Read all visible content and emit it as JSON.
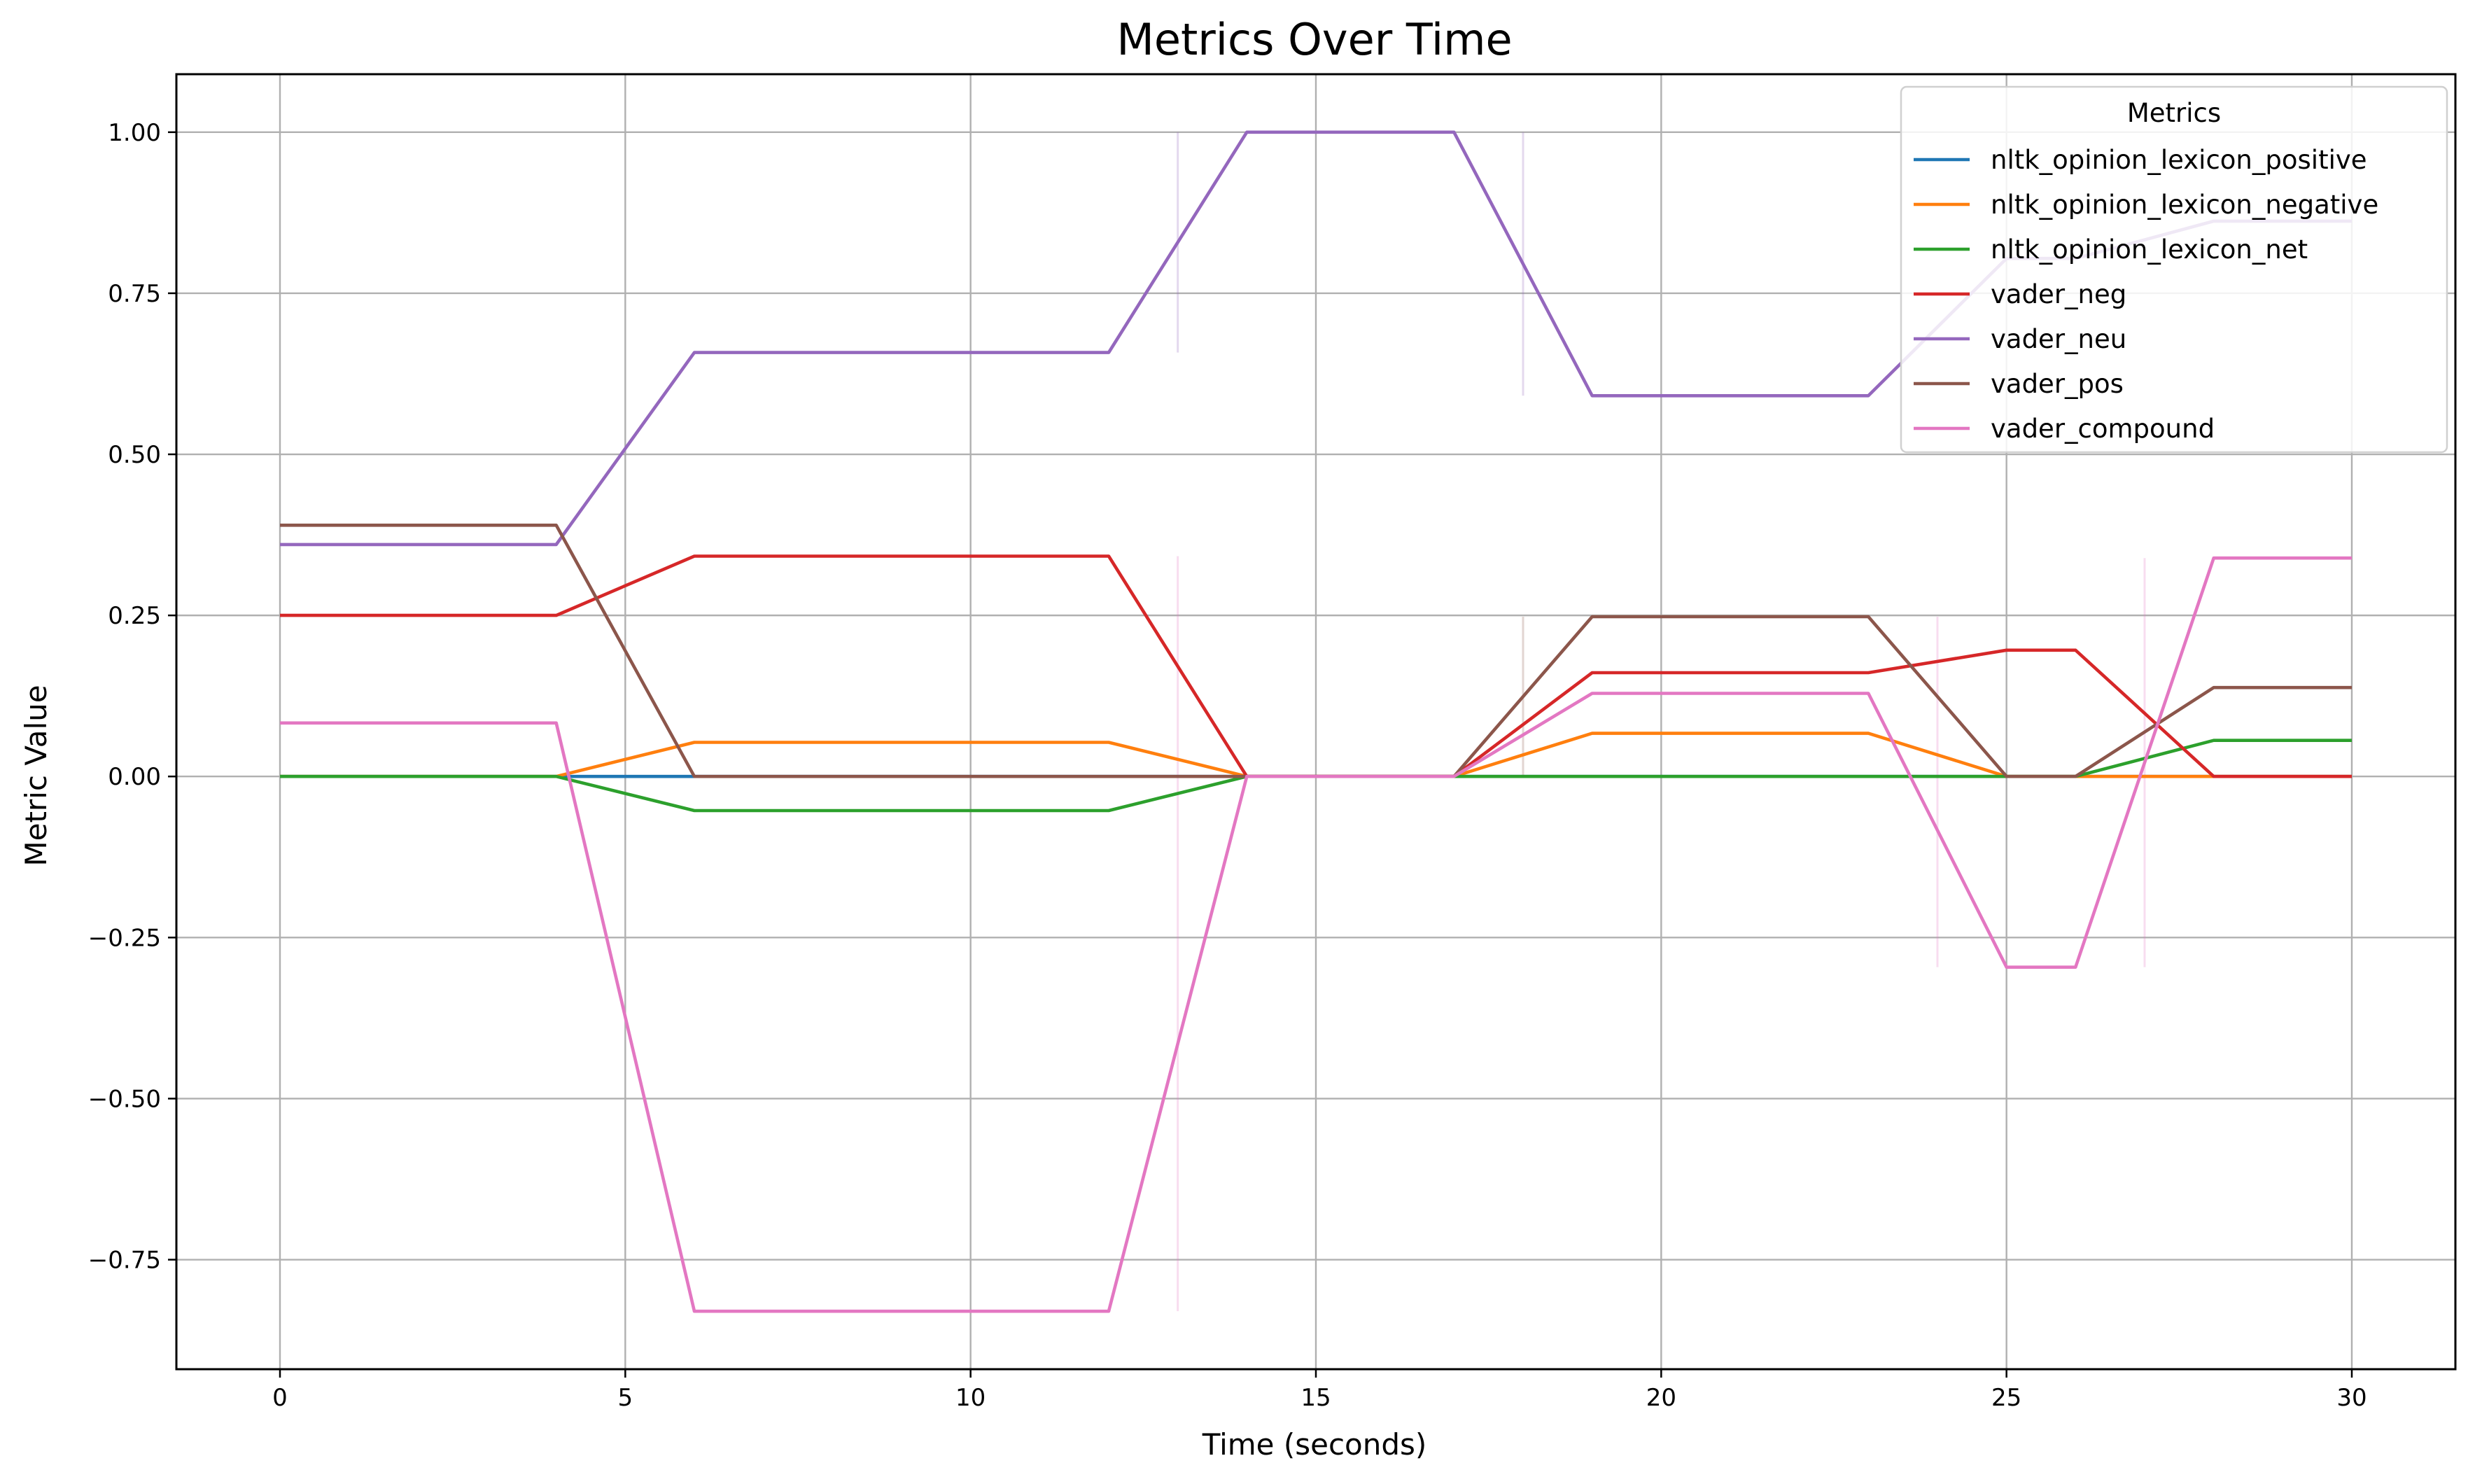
{
  "chart_data": {
    "type": "line",
    "title": "Metrics Over Time",
    "xlabel": "Time (seconds)",
    "ylabel": "Metric Value",
    "xlim": [
      -1.5,
      31.5
    ],
    "ylim": [
      -0.92,
      1.09
    ],
    "x_ticks": [
      0,
      5,
      10,
      15,
      20,
      25,
      30
    ],
    "x_tick_labels": [
      "0",
      "5",
      "10",
      "15",
      "20",
      "25",
      "30"
    ],
    "y_ticks": [
      1.0,
      0.75,
      0.5,
      0.25,
      0.0,
      -0.25,
      -0.5,
      -0.75
    ],
    "y_tick_labels": [
      "1.00",
      "0.75",
      "0.50",
      "0.25",
      "0.00",
      "−0.25",
      "−0.50",
      "−0.75"
    ],
    "grid": true,
    "legend": {
      "title": "Metrics",
      "placement": "top-right"
    },
    "series": [
      {
        "name": "nltk_opinion_lexicon_positive",
        "color": "#1f77b4",
        "x": [
          0,
          4,
          6,
          12,
          14,
          17,
          19,
          23,
          25,
          26,
          28,
          30
        ],
        "values": [
          0,
          0,
          0,
          0,
          0,
          0,
          0,
          0,
          0,
          0,
          0,
          0
        ]
      },
      {
        "name": "nltk_opinion_lexicon_negative",
        "color": "#ff7f0e",
        "x": [
          0,
          4,
          6,
          12,
          14,
          17,
          19,
          23,
          25,
          26,
          28,
          30
        ],
        "values": [
          0,
          0,
          0.053,
          0.053,
          0,
          0,
          0.067,
          0.067,
          0,
          0,
          0,
          0
        ]
      },
      {
        "name": "nltk_opinion_lexicon_net",
        "color": "#2ca02c",
        "x": [
          0,
          4,
          6,
          12,
          14,
          17,
          19,
          23,
          25,
          26,
          28,
          30
        ],
        "values": [
          0,
          0,
          -0.053,
          -0.053,
          0,
          0,
          0,
          0,
          0,
          0,
          0.056,
          0.056
        ]
      },
      {
        "name": "vader_neg",
        "color": "#d62728",
        "x": [
          0,
          4,
          6,
          12,
          14,
          17,
          19,
          23,
          25,
          26,
          28,
          30
        ],
        "values": [
          0.25,
          0.25,
          0.342,
          0.342,
          0,
          0,
          0.161,
          0.161,
          0.196,
          0.196,
          0,
          0
        ]
      },
      {
        "name": "vader_neu",
        "color": "#9467bd",
        "x": [
          0,
          4,
          6,
          12,
          14,
          17,
          19,
          23,
          25,
          26,
          28,
          30
        ],
        "values": [
          0.36,
          0.36,
          0.658,
          0.658,
          1.0,
          1.0,
          0.591,
          0.591,
          0.804,
          0.804,
          0.862,
          0.862
        ]
      },
      {
        "name": "vader_pos",
        "color": "#8c564b",
        "x": [
          0,
          4,
          6,
          12,
          14,
          17,
          19,
          23,
          25,
          26,
          28,
          30
        ],
        "values": [
          0.39,
          0.39,
          0,
          0,
          0,
          0,
          0.248,
          0.248,
          0,
          0,
          0.138,
          0.138
        ]
      },
      {
        "name": "vader_compound",
        "color": "#e377c2",
        "x": [
          0,
          4,
          6,
          12,
          14,
          17,
          19,
          23,
          25,
          26,
          28,
          30
        ],
        "values": [
          0.083,
          0.083,
          -0.83,
          -0.83,
          0,
          0,
          0.129,
          0.129,
          -0.296,
          -0.296,
          0.339,
          0.339
        ]
      }
    ],
    "annotations_vertical_marks": [
      {
        "x": 13,
        "y_from": -0.83,
        "y_to": 0.342,
        "color": "#e377c2"
      },
      {
        "x": 13,
        "y_from": 0.658,
        "y_to": 1.0,
        "color": "#9467bd"
      },
      {
        "x": 18,
        "y_from": 0.0,
        "y_to": 0.248,
        "color": "#8c564b"
      },
      {
        "x": 18,
        "y_from": 0.591,
        "y_to": 1.0,
        "color": "#9467bd"
      },
      {
        "x": 24,
        "y_from": -0.296,
        "y_to": 0.248,
        "color": "#e377c2"
      },
      {
        "x": 27,
        "y_from": -0.296,
        "y_to": 0.339,
        "color": "#e377c2"
      }
    ]
  }
}
